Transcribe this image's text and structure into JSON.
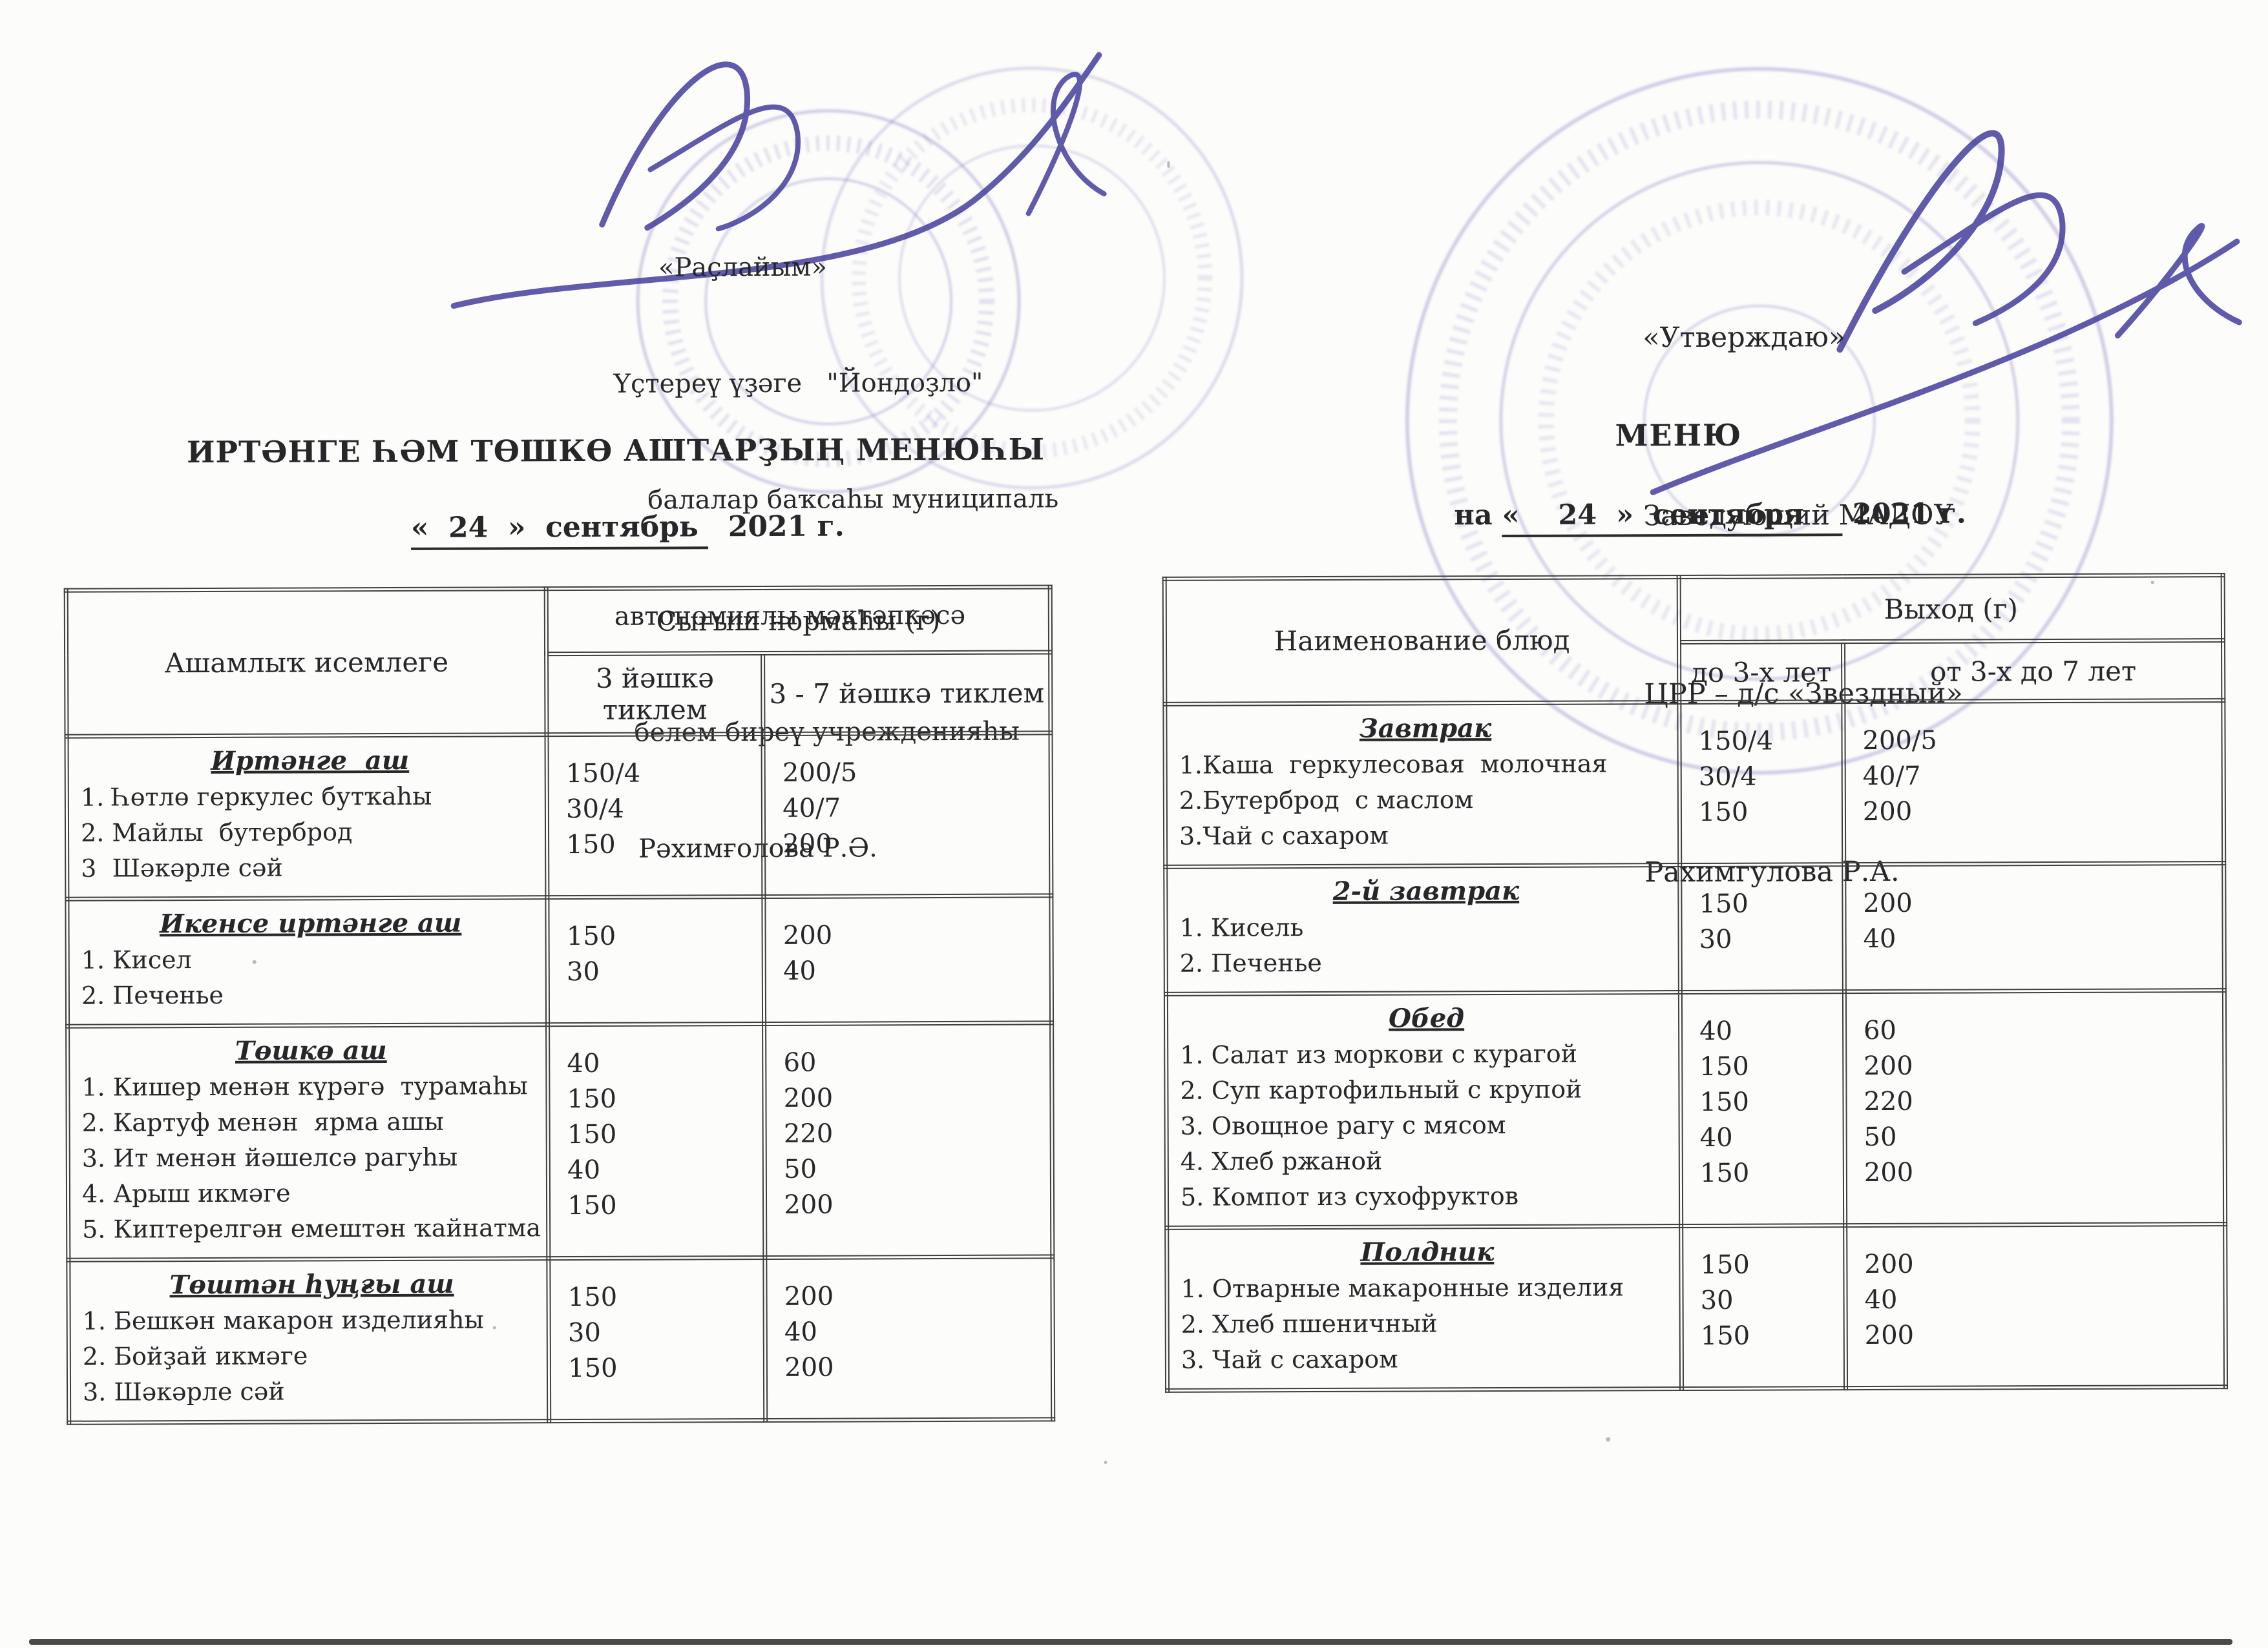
{
  "document": {
    "left": {
      "approval_block": {
        "lines": [
          "«Раҫлайым»",
          "Үҫтереү үҙәге   \"Йондоҙло\"",
          "балалар баҡсаһы муниципаль",
          "автономиялы мәктәпкәсә",
          "белем биреү учрежденияһы",
          "Рәхимғолова Р.Ә."
        ]
      },
      "title": "ИРТӘНГЕ ҺӘМ ТӨШКӨ АШТАРҘЫҢ МЕНЮҺЫ",
      "date": {
        "underlined": "«  24  »  сентябрь ",
        "rest": "  2021 г."
      },
      "table": {
        "header": {
          "dish_column": "Ашамлыҡ исемлеге",
          "output_column": "Сығыш нормаһы (г)",
          "age_col_1": "3 йәшкә тиклем",
          "age_col_2": "3 - 7 йәшкә тиклем"
        },
        "sections": [
          {
            "title": "Иртәнге  аш",
            "items": [
              {
                "name": "1. Һөтлө геркулес бутҡаһы",
                "v1": "150/4",
                "v2": "200/5"
              },
              {
                "name": "2. Майлы  бутерброд",
                "v1": "30/4",
                "v2": "40/7"
              },
              {
                "name": "3  Шәкәрле сәй",
                "v1": "150",
                "v2": "200"
              }
            ]
          },
          {
            "title": "Икенсе иртәнге аш",
            "items": [
              {
                "name": "1. Кисел",
                "v1": "150",
                "v2": "200"
              },
              {
                "name": "2. Печенье",
                "v1": "30",
                "v2": "40"
              }
            ]
          },
          {
            "title": "Төшкө аш",
            "items": [
              {
                "name": "1. Кишер менән күрәгә  турамаһы",
                "v1": "40",
                "v2": "60"
              },
              {
                "name": "2. Картуф менән  ярма ашы",
                "v1": "150",
                "v2": "200"
              },
              {
                "name": "3. Ит менән йәшелсә рагуһы",
                "v1": "150",
                "v2": "220"
              },
              {
                "name": "4. Арыш икмәге",
                "v1": "40",
                "v2": "50"
              },
              {
                "name": "5. Киптерелгән емештән ҡайнатма",
                "v1": "150",
                "v2": "200"
              }
            ]
          },
          {
            "title": "Төштән һуңғы аш",
            "items": [
              {
                "name": "1. Бешкән макарон изделияһы",
                "v1": "150",
                "v2": "200"
              },
              {
                "name": "2. Бойҙай икмәге",
                "v1": "30",
                "v2": "40"
              },
              {
                "name": "3. Шәкәрле сәй",
                "v1": "150",
                "v2": "200"
              }
            ]
          }
        ]
      }
    },
    "right": {
      "approval_block": {
        "lines": [
          "«Утверждаю»",
          "Заведующий МАДОУ",
          "ЦРР – д/с «Звездный»",
          "Рахимгулова Р.А."
        ]
      },
      "title": "МЕНЮ",
      "date": {
        "prefix": "на ",
        "underlined": "«    24  »  сентября    ",
        "rest": " 2021 г."
      },
      "table": {
        "header": {
          "dish_column": "Наименование блюд",
          "output_column": "Выход (г)",
          "age_col_1": "до 3-х лет",
          "age_col_2": "от 3-х до 7 лет"
        },
        "sections": [
          {
            "title": "Завтрак",
            "items": [
              {
                "name": "1.Каша  геркулесовая  молочная",
                "v1": "150/4",
                "v2": "200/5"
              },
              {
                "name": "2.Бутерброд  с маслом",
                "v1": "30/4",
                "v2": "40/7"
              },
              {
                "name": "3.Чай с сахаром",
                "v1": "150",
                "v2": "200"
              }
            ]
          },
          {
            "title": "2-й завтрак",
            "items": [
              {
                "name": "1. Кисель",
                "v1": "150",
                "v2": "200"
              },
              {
                "name": "2. Печенье",
                "v1": "30",
                "v2": "40"
              }
            ]
          },
          {
            "title": "Обед",
            "items": [
              {
                "name": "1. Салат из моркови с курагой",
                "v1": "40",
                "v2": "60"
              },
              {
                "name": "2. Суп картофильный с крупой",
                "v1": "150",
                "v2": "200"
              },
              {
                "name": "3. Овощное рагу с мясом",
                "v1": "150",
                "v2": "220"
              },
              {
                "name": "4. Хлеб ржаной",
                "v1": "40",
                "v2": "50"
              },
              {
                "name": "5. Компот из сухофруктов",
                "v1": "150",
                "v2": "200"
              }
            ]
          },
          {
            "title": "Полдник",
            "items": [
              {
                "name": "1. Отварные макаронные изделия",
                "v1": "150",
                "v2": "200"
              },
              {
                "name": "2. Хлеб пшеничный",
                "v1": "30",
                "v2": "40"
              },
              {
                "name": "3. Чай с сахаром",
                "v1": "150",
                "v2": "200"
              }
            ]
          }
        ]
      }
    },
    "stamp_ink_color": "#6f63b8",
    "signature_ink_color": "#453e9e"
  }
}
